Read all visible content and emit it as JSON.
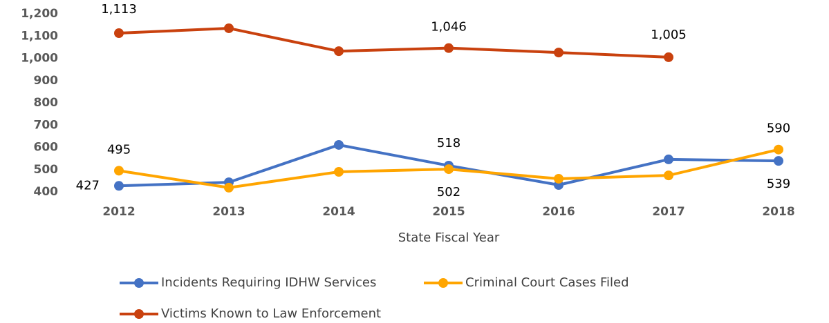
{
  "chart_data": {
    "type": "line",
    "x_label": "State Fiscal Year",
    "categories": [
      "2012",
      "2013",
      "2014",
      "2015",
      "2016",
      "2017",
      "2018"
    ],
    "series": [
      {
        "name": "Incidents Requiring IDHW Services",
        "color": "#4472c4",
        "values": [
          427,
          443,
          611,
          518,
          431,
          546,
          539
        ],
        "value_labels": [
          "427",
          null,
          null,
          "518",
          null,
          null,
          "539"
        ]
      },
      {
        "name": "Criminal Court Cases Filed",
        "color": "#ffa500",
        "values": [
          495,
          419,
          490,
          502,
          459,
          474,
          590
        ],
        "value_labels": [
          "495",
          null,
          null,
          "502",
          null,
          null,
          "590"
        ]
      },
      {
        "name": "Victims Known to Law Enforcement",
        "color": "#c9410e",
        "values": [
          1113,
          1135,
          1032,
          1046,
          1026,
          1005,
          null
        ],
        "value_labels": [
          "1,113",
          null,
          null,
          "1,046",
          null,
          "1,005",
          null
        ]
      }
    ],
    "ylim": [
      400,
      1200
    ],
    "yticks": [
      400,
      500,
      600,
      700,
      800,
      900,
      {
        "value": 1000,
        "label": "1,000"
      },
      {
        "value": 1100,
        "label": "1,100"
      },
      {
        "value": 1200,
        "label": "1,200"
      }
    ],
    "grid": false,
    "legend": "bottom"
  }
}
